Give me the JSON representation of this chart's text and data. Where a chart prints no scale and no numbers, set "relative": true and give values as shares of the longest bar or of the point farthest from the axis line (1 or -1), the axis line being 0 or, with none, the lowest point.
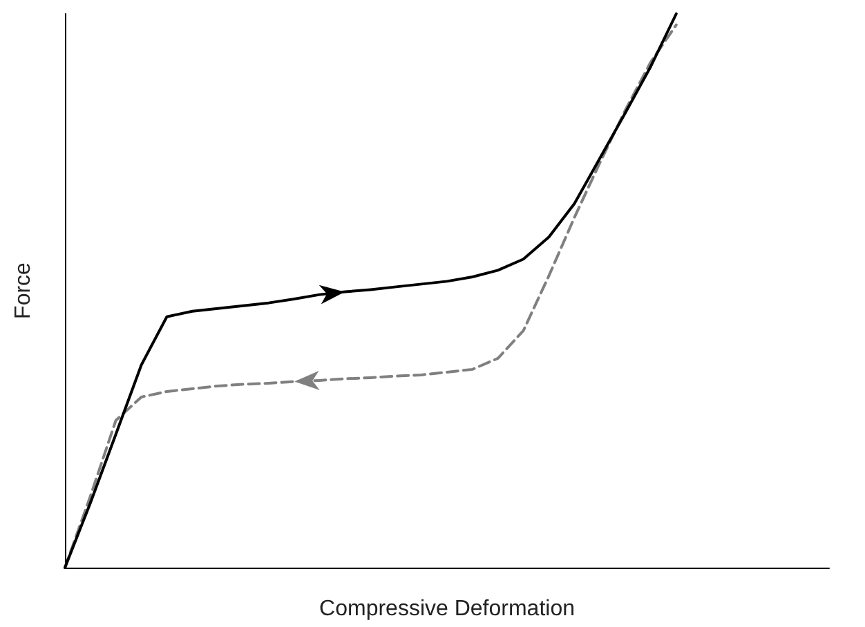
{
  "chart_data": {
    "type": "line",
    "xlabel": "Compressive Deformation",
    "ylabel": "Force",
    "relative": true,
    "marker": "none",
    "categories": [
      null,
      null,
      null,
      null,
      null,
      null,
      null,
      null,
      null,
      null,
      null,
      null,
      null,
      null,
      null,
      null,
      null,
      null,
      null,
      null,
      null,
      null,
      null,
      null,
      null,
      null,
      null,
      null,
      null,
      null,
      null
    ],
    "series": [
      {
        "color": "#000000",
        "line_style": "solid",
        "values": [
          0,
          0.117,
          0.241,
          0.366,
          0.453,
          0.463,
          0.468,
          0.473,
          0.478,
          0.485,
          0.493,
          0.498,
          0.502,
          0.507,
          0.512,
          0.517,
          0.525,
          0.537,
          0.557,
          0.597,
          0.657,
          0.739,
          0.821,
          0.905,
          1,
          null,
          null,
          null,
          null,
          null,
          null
        ]
      },
      {
        "color": "#808080",
        "line_style": "dashed",
        "values": [
          0,
          0.129,
          0.266,
          0.308,
          0.318,
          0.323,
          0.328,
          0.331,
          0.333,
          0.336,
          0.338,
          0.341,
          0.343,
          0.346,
          0.348,
          0.353,
          0.358,
          0.378,
          0.428,
          0.527,
          0.632,
          0.731,
          0.826,
          0.913,
          0.98,
          null,
          null,
          null,
          null,
          null,
          null
        ]
      }
    ]
  }
}
